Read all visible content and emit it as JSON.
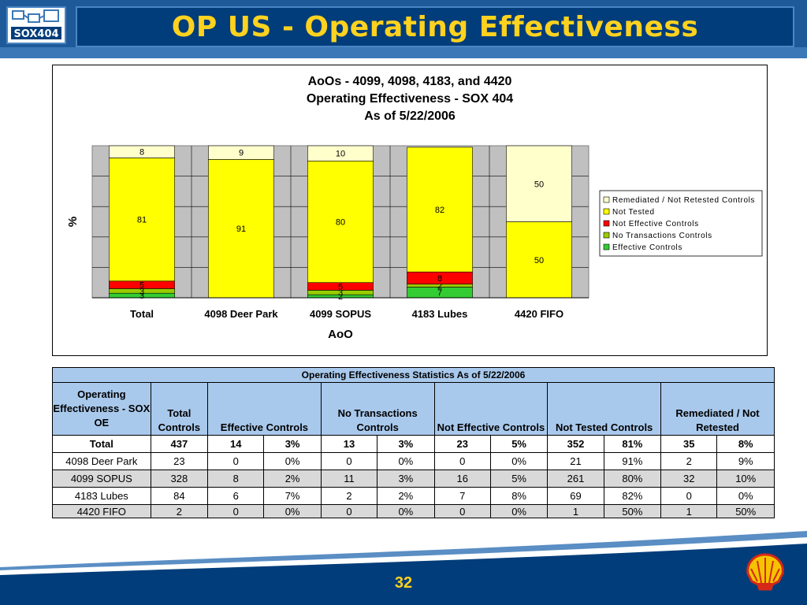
{
  "slide": {
    "title": "OP US - Operating Effectiveness",
    "logo_text": "SOX404",
    "page_number": "32",
    "brand_colors": {
      "blue": "#003d7a",
      "title": "#ffd21f"
    }
  },
  "chart_data": {
    "type": "bar",
    "stacked": true,
    "title": [
      "AoOs - 4099, 4098, 4183, and 4420",
      "Operating Effectiveness - SOX 404",
      "As of 5/22/2006"
    ],
    "xlabel": "AoO",
    "ylabel": "%",
    "ylim": [
      0,
      100
    ],
    "grid": true,
    "legend_position": "right",
    "categories": [
      "Total",
      "4098 Deer Park",
      "4099 SOPUS",
      "4183 Lubes",
      "4420 FIFO"
    ],
    "series": [
      {
        "name": "Effective Controls",
        "color": "#33cc33",
        "values": [
          3,
          0,
          2,
          7,
          0
        ],
        "labels": [
          "3",
          "",
          "2",
          "7",
          ""
        ]
      },
      {
        "name": "No Transactions Controls",
        "color": "#99cc00",
        "values": [
          3,
          0,
          3,
          2,
          0
        ],
        "labels": [
          "3",
          "",
          "3",
          "2",
          ""
        ]
      },
      {
        "name": "Not Effective Controls",
        "color": "#ff0000",
        "values": [
          5,
          0,
          5,
          8,
          0
        ],
        "labels": [
          "5",
          "",
          "5",
          "8",
          ""
        ]
      },
      {
        "name": "Not Tested",
        "color": "#ffff00",
        "values": [
          81,
          91,
          80,
          82,
          50
        ],
        "labels": [
          "81",
          "91",
          "80",
          "82",
          "50"
        ]
      },
      {
        "name": "Remediated / Not Retested Controls",
        "color": "#ffffcc",
        "values": [
          8,
          9,
          10,
          0,
          50
        ],
        "labels": [
          "8",
          "9",
          "10",
          "",
          "50"
        ]
      }
    ],
    "legend_order": [
      "Remediated / Not Retested Controls",
      "Not Tested",
      "Not Effective Controls",
      "No Transactions Controls",
      "Effective Controls"
    ]
  },
  "stats_table": {
    "title": "Operating Effectiveness Statistics As of 5/22/2006",
    "headers": [
      "Operating Effectiveness - SOX OE",
      "Total Controls",
      "Effective Controls",
      "No Transactions Controls",
      "Not Effective Controls",
      "Not Tested Controls",
      "Remediated / Not Retested"
    ],
    "rows": [
      [
        "Total",
        "437",
        "14",
        "3%",
        "13",
        "3%",
        "23",
        "5%",
        "352",
        "81%",
        "35",
        "8%"
      ],
      [
        "4098 Deer Park",
        "23",
        "0",
        "0%",
        "0",
        "0%",
        "0",
        "0%",
        "21",
        "91%",
        "2",
        "9%"
      ],
      [
        "4099 SOPUS",
        "328",
        "8",
        "2%",
        "11",
        "3%",
        "16",
        "5%",
        "261",
        "80%",
        "32",
        "10%"
      ],
      [
        "4183 Lubes",
        "84",
        "6",
        "7%",
        "2",
        "2%",
        "7",
        "8%",
        "69",
        "82%",
        "0",
        "0%"
      ],
      [
        "4420 FIFO",
        "2",
        "0",
        "0%",
        "0",
        "0%",
        "0",
        "0%",
        "1",
        "50%",
        "1",
        "50%"
      ]
    ]
  }
}
